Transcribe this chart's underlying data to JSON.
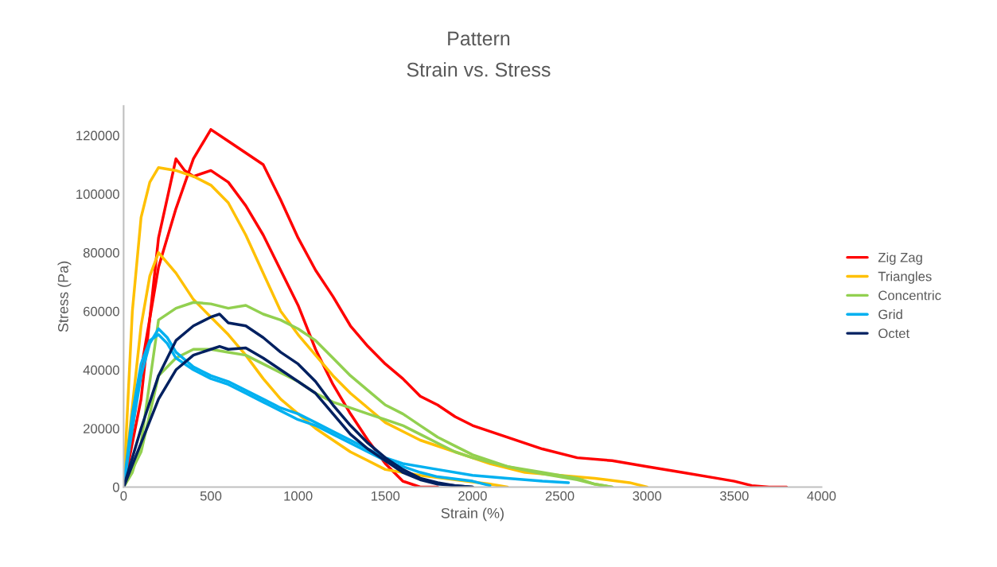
{
  "chart_data": {
    "type": "line",
    "title": "Pattern",
    "subtitle": "Strain vs. Stress",
    "xlabel": "Strain (%)",
    "ylabel": "Stress (Pa)",
    "xlim": [
      0,
      4000
    ],
    "xticks": [
      0,
      500,
      1000,
      1500,
      2000,
      2500,
      3000,
      3500,
      4000
    ],
    "ylim": [
      0,
      130000
    ],
    "yticks": [
      0,
      20000,
      40000,
      60000,
      80000,
      100000,
      120000
    ],
    "grid": false,
    "legend": "right",
    "marker": "none",
    "line_style": "solid",
    "series": [
      {
        "name": "Zig Zag",
        "color": "#ff0000",
        "x": [
          0,
          100,
          200,
          300,
          400,
          500,
          600,
          700,
          800,
          900,
          1000,
          1100,
          1200,
          1300,
          1400,
          1500,
          1600,
          1700,
          1800,
          1900,
          2000,
          2200,
          2400,
          2600,
          2800,
          3000,
          3200,
          3400,
          3500,
          3600,
          3700,
          3800
        ],
        "values": [
          0,
          40000,
          75000,
          95000,
          112000,
          122000,
          118000,
          114000,
          110000,
          98000,
          85000,
          74000,
          65000,
          55000,
          48000,
          42000,
          37000,
          31000,
          28000,
          24000,
          21000,
          17000,
          13000,
          10000,
          9000,
          7000,
          5000,
          3000,
          2000,
          500,
          0,
          0
        ]
      },
      {
        "color": "#ff0000",
        "x": [
          0,
          100,
          200,
          300,
          350,
          400,
          500,
          600,
          700,
          800,
          900,
          1000,
          1100,
          1200,
          1300,
          1400,
          1500,
          1600,
          1700,
          1800
        ],
        "values": [
          0,
          30000,
          85000,
          112000,
          108000,
          106000,
          108000,
          104000,
          96000,
          86000,
          74000,
          62000,
          47000,
          35000,
          25000,
          16000,
          8000,
          2000,
          0,
          0
        ]
      },
      {
        "name": "Triangles",
        "color": "#ffc000",
        "x": [
          0,
          50,
          100,
          150,
          200,
          300,
          400,
          500,
          600,
          700,
          800,
          900,
          1000,
          1100,
          1200,
          1300,
          1400,
          1500,
          1700,
          1900,
          2100,
          2300,
          2500,
          2700,
          2900,
          3000
        ],
        "values": [
          0,
          60000,
          92000,
          104000,
          109000,
          108000,
          106000,
          103000,
          97000,
          86000,
          73000,
          60000,
          52000,
          45000,
          38000,
          32000,
          27000,
          22000,
          16000,
          12000,
          8000,
          5000,
          4000,
          3000,
          1500,
          0
        ]
      },
      {
        "color": "#ffc000",
        "x": [
          0,
          100,
          150,
          200,
          300,
          400,
          500,
          600,
          700,
          800,
          900,
          1000,
          1100,
          1200,
          1300,
          1400,
          1500,
          1700,
          1900,
          2100,
          2200
        ],
        "values": [
          0,
          55000,
          72000,
          80000,
          73000,
          64000,
          58000,
          52000,
          45000,
          37000,
          30000,
          25000,
          20000,
          16000,
          12000,
          9000,
          6000,
          4000,
          2500,
          1000,
          0
        ]
      },
      {
        "name": "Concentric",
        "color": "#92d050",
        "x": [
          0,
          50,
          100,
          200,
          300,
          400,
          500,
          600,
          700,
          800,
          900,
          1000,
          1100,
          1200,
          1300,
          1400,
          1500,
          1600,
          1700,
          1800,
          1900,
          2000,
          2200,
          2400,
          2600,
          2700,
          2800
        ],
        "values": [
          0,
          5000,
          15000,
          57000,
          61000,
          63000,
          62500,
          61000,
          62000,
          59000,
          57000,
          54000,
          50000,
          44000,
          38000,
          33000,
          28000,
          25000,
          21000,
          17000,
          14000,
          11000,
          7000,
          5000,
          3000,
          1000,
          0
        ]
      },
      {
        "color": "#92d050",
        "x": [
          0,
          100,
          200,
          300,
          400,
          500,
          600,
          700,
          800,
          900,
          1000,
          1100,
          1200,
          1300,
          1400,
          1500,
          1600,
          1700,
          1800,
          1900,
          2000,
          2200,
          2400,
          2600,
          2700,
          2800
        ],
        "values": [
          0,
          12000,
          38000,
          44000,
          47000,
          47000,
          46000,
          45000,
          42000,
          39000,
          36000,
          32000,
          29000,
          27000,
          25000,
          23000,
          21000,
          18000,
          15000,
          12000,
          10000,
          7000,
          4500,
          2500,
          1000,
          0
        ]
      },
      {
        "name": "Grid",
        "color": "#00b0f0",
        "x": [
          0,
          50,
          100,
          150,
          200,
          250,
          300,
          400,
          500,
          600,
          700,
          800,
          900,
          1000,
          1100,
          1200,
          1300,
          1400,
          1500,
          1600,
          1800,
          2000,
          2200,
          2400,
          2550
        ],
        "values": [
          0,
          20000,
          38000,
          49000,
          54000,
          51000,
          46000,
          41000,
          38000,
          36000,
          33000,
          30000,
          27000,
          25000,
          22000,
          19000,
          16000,
          13000,
          10000,
          8000,
          6000,
          4000,
          3000,
          2000,
          1500
        ]
      },
      {
        "color": "#00b0f0",
        "x": [
          0,
          50,
          100,
          150,
          200,
          250,
          300,
          400,
          500,
          600,
          700,
          800,
          900,
          1000,
          1100,
          1200,
          1300,
          1400,
          1500,
          1600,
          1700,
          1800,
          2000,
          2100
        ],
        "values": [
          0,
          25000,
          42000,
          50000,
          52000,
          49000,
          44000,
          40000,
          37000,
          35000,
          32000,
          29000,
          26000,
          23000,
          21000,
          18000,
          15000,
          12000,
          9000,
          7000,
          5000,
          3500,
          2000,
          500
        ]
      },
      {
        "name": "Octet",
        "color": "#002060",
        "x": [
          0,
          100,
          200,
          300,
          400,
          500,
          550,
          600,
          700,
          800,
          900,
          1000,
          1100,
          1200,
          1300,
          1400,
          1500,
          1600,
          1700,
          1800,
          1900,
          2000
        ],
        "values": [
          0,
          20000,
          38000,
          50000,
          55000,
          58000,
          59000,
          56000,
          55000,
          51000,
          46000,
          42000,
          36000,
          28000,
          21000,
          15000,
          10000,
          6000,
          3000,
          1500,
          500,
          0
        ]
      },
      {
        "color": "#002060",
        "x": [
          0,
          100,
          200,
          300,
          400,
          500,
          550,
          600,
          700,
          800,
          900,
          1000,
          1100,
          1200,
          1300,
          1400,
          1500,
          1600,
          1700,
          1800,
          1900,
          2000
        ],
        "values": [
          0,
          15000,
          30000,
          40000,
          45000,
          47000,
          48000,
          47000,
          47500,
          44000,
          40000,
          36000,
          32000,
          25000,
          18000,
          13000,
          9000,
          5000,
          2500,
          1000,
          500,
          0
        ]
      }
    ]
  }
}
